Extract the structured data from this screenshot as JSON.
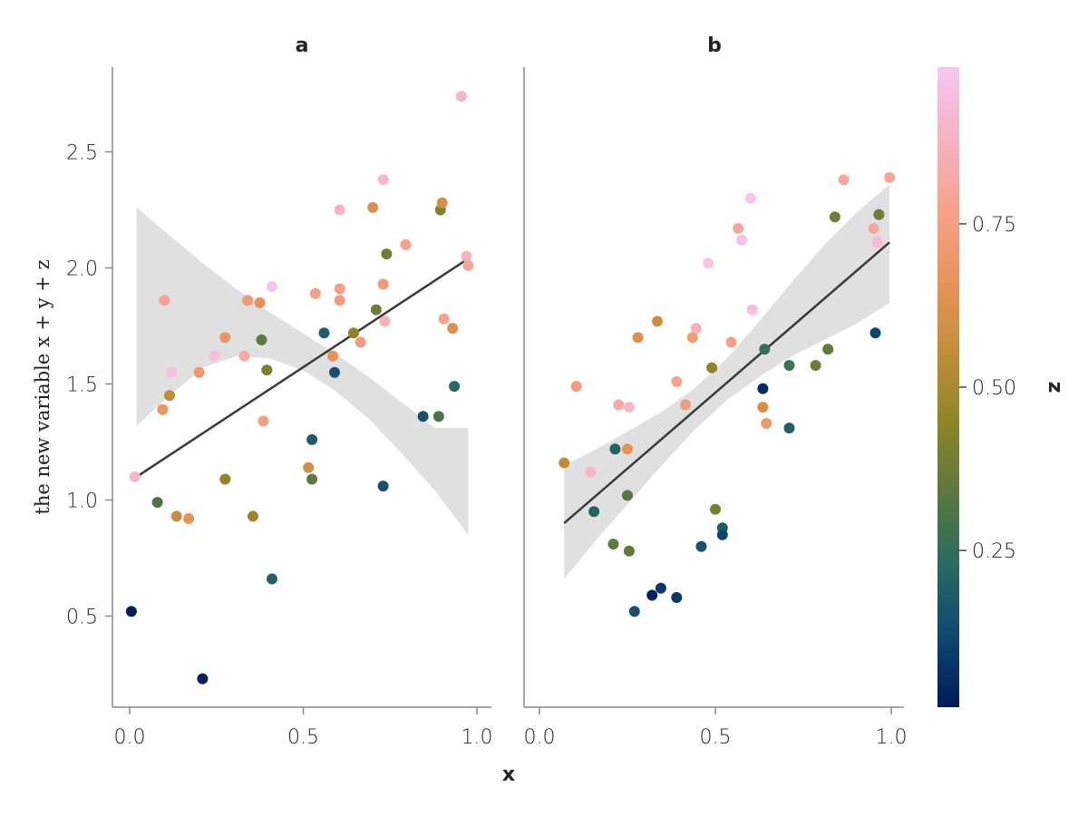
{
  "chart_data": {
    "type": "scatter",
    "xlabel": "x",
    "ylabel": "the new variable x + y + z",
    "xlim": [
      -0.05,
      1.05
    ],
    "ylim": [
      0.1,
      2.85
    ],
    "x_ticks": [
      "0.0",
      "0.5",
      "1.0"
    ],
    "y_ticks": [
      "0.5",
      "1.0",
      "1.5",
      "2.0",
      "2.5"
    ],
    "colorbar": {
      "label": "z",
      "range": [
        0.01,
        0.99
      ],
      "ticks": [
        "0.25",
        "0.50",
        "0.75"
      ],
      "palette": [
        "#001a5a",
        "#10476f",
        "#2b6a63",
        "#5a7740",
        "#8e8527",
        "#c28d3a",
        "#ea935c",
        "#f6a18d",
        "#f6b3c3",
        "#f6c6f2"
      ]
    },
    "panels": [
      {
        "title": "a",
        "fit": {
          "x0": 0.02,
          "x1": 0.975,
          "y0": 1.1,
          "y1": 2.04,
          "lo": [
            1.32,
            1.45,
            1.57,
            1.62,
            1.61,
            1.56,
            1.47,
            1.35,
            1.2,
            1.04,
            0.85
          ],
          "hi": [
            2.26,
            2.14,
            2.02,
            1.91,
            1.81,
            1.72,
            1.63,
            1.53,
            1.42,
            1.31,
            1.31
          ]
        },
        "points": [
          {
            "x": 0.005,
            "y": 0.52,
            "z": 0.02
          },
          {
            "x": 0.015,
            "y": 1.1,
            "z": 0.9
          },
          {
            "x": 0.08,
            "y": 0.99,
            "z": 0.3
          },
          {
            "x": 0.095,
            "y": 1.39,
            "z": 0.68
          },
          {
            "x": 0.1,
            "y": 1.86,
            "z": 0.78
          },
          {
            "x": 0.115,
            "y": 1.45,
            "z": 0.55
          },
          {
            "x": 0.12,
            "y": 1.55,
            "z": 0.95
          },
          {
            "x": 0.135,
            "y": 0.93,
            "z": 0.58
          },
          {
            "x": 0.17,
            "y": 0.92,
            "z": 0.65
          },
          {
            "x": 0.2,
            "y": 1.55,
            "z": 0.7
          },
          {
            "x": 0.21,
            "y": 0.23,
            "z": 0.03
          },
          {
            "x": 0.245,
            "y": 1.62,
            "z": 0.95
          },
          {
            "x": 0.275,
            "y": 1.7,
            "z": 0.68
          },
          {
            "x": 0.275,
            "y": 1.09,
            "z": 0.45
          },
          {
            "x": 0.33,
            "y": 1.62,
            "z": 0.82
          },
          {
            "x": 0.34,
            "y": 1.86,
            "z": 0.72
          },
          {
            "x": 0.355,
            "y": 0.93,
            "z": 0.48
          },
          {
            "x": 0.375,
            "y": 1.85,
            "z": 0.66
          },
          {
            "x": 0.38,
            "y": 1.69,
            "z": 0.35
          },
          {
            "x": 0.385,
            "y": 1.34,
            "z": 0.75
          },
          {
            "x": 0.395,
            "y": 1.56,
            "z": 0.4
          },
          {
            "x": 0.41,
            "y": 1.92,
            "z": 0.97
          },
          {
            "x": 0.41,
            "y": 0.66,
            "z": 0.2
          },
          {
            "x": 0.515,
            "y": 1.14,
            "z": 0.6
          },
          {
            "x": 0.525,
            "y": 1.26,
            "z": 0.18
          },
          {
            "x": 0.525,
            "y": 1.09,
            "z": 0.35
          },
          {
            "x": 0.535,
            "y": 1.89,
            "z": 0.76
          },
          {
            "x": 0.56,
            "y": 1.72,
            "z": 0.18
          },
          {
            "x": 0.585,
            "y": 1.62,
            "z": 0.66
          },
          {
            "x": 0.59,
            "y": 1.55,
            "z": 0.15
          },
          {
            "x": 0.605,
            "y": 2.25,
            "z": 0.88
          },
          {
            "x": 0.605,
            "y": 1.91,
            "z": 0.76
          },
          {
            "x": 0.605,
            "y": 1.86,
            "z": 0.74
          },
          {
            "x": 0.645,
            "y": 1.72,
            "z": 0.45
          },
          {
            "x": 0.665,
            "y": 1.68,
            "z": 0.74
          },
          {
            "x": 0.7,
            "y": 2.26,
            "z": 0.62
          },
          {
            "x": 0.71,
            "y": 1.82,
            "z": 0.38
          },
          {
            "x": 0.73,
            "y": 2.38,
            "z": 0.9
          },
          {
            "x": 0.73,
            "y": 1.93,
            "z": 0.72
          },
          {
            "x": 0.73,
            "y": 1.06,
            "z": 0.15
          },
          {
            "x": 0.735,
            "y": 1.77,
            "z": 0.86
          },
          {
            "x": 0.74,
            "y": 2.06,
            "z": 0.38
          },
          {
            "x": 0.795,
            "y": 2.1,
            "z": 0.78
          },
          {
            "x": 0.845,
            "y": 1.36,
            "z": 0.15
          },
          {
            "x": 0.89,
            "y": 1.36,
            "z": 0.3
          },
          {
            "x": 0.895,
            "y": 2.25,
            "z": 0.42
          },
          {
            "x": 0.9,
            "y": 2.28,
            "z": 0.6
          },
          {
            "x": 0.905,
            "y": 1.78,
            "z": 0.78
          },
          {
            "x": 0.93,
            "y": 1.74,
            "z": 0.62
          },
          {
            "x": 0.935,
            "y": 1.49,
            "z": 0.22
          },
          {
            "x": 0.955,
            "y": 2.74,
            "z": 0.9
          },
          {
            "x": 0.97,
            "y": 2.05,
            "z": 0.88
          },
          {
            "x": 0.975,
            "y": 2.01,
            "z": 0.8
          }
        ]
      },
      {
        "title": "b",
        "fit": {
          "x0": 0.07,
          "x1": 0.995,
          "y0": 0.9,
          "y1": 2.11,
          "lo": [
            0.66,
            0.83,
            0.99,
            1.15,
            1.3,
            1.43,
            1.53,
            1.62,
            1.69,
            1.76,
            1.85
          ],
          "hi": [
            1.15,
            1.22,
            1.3,
            1.38,
            1.48,
            1.61,
            1.77,
            1.94,
            2.1,
            2.24,
            2.36
          ]
        },
        "points": [
          {
            "x": 0.07,
            "y": 1.16,
            "z": 0.55
          },
          {
            "x": 0.105,
            "y": 1.49,
            "z": 0.74
          },
          {
            "x": 0.145,
            "y": 1.12,
            "z": 0.9
          },
          {
            "x": 0.155,
            "y": 0.95,
            "z": 0.2
          },
          {
            "x": 0.21,
            "y": 0.81,
            "z": 0.35
          },
          {
            "x": 0.215,
            "y": 1.22,
            "z": 0.2
          },
          {
            "x": 0.225,
            "y": 1.41,
            "z": 0.82
          },
          {
            "x": 0.25,
            "y": 1.22,
            "z": 0.66
          },
          {
            "x": 0.25,
            "y": 1.02,
            "z": 0.33
          },
          {
            "x": 0.255,
            "y": 0.78,
            "z": 0.35
          },
          {
            "x": 0.255,
            "y": 1.4,
            "z": 0.9
          },
          {
            "x": 0.27,
            "y": 0.52,
            "z": 0.15
          },
          {
            "x": 0.28,
            "y": 1.7,
            "z": 0.62
          },
          {
            "x": 0.32,
            "y": 0.59,
            "z": 0.03
          },
          {
            "x": 0.335,
            "y": 1.77,
            "z": 0.58
          },
          {
            "x": 0.345,
            "y": 0.62,
            "z": 0.08
          },
          {
            "x": 0.39,
            "y": 0.58,
            "z": 0.08
          },
          {
            "x": 0.39,
            "y": 1.51,
            "z": 0.78
          },
          {
            "x": 0.415,
            "y": 1.41,
            "z": 0.74
          },
          {
            "x": 0.435,
            "y": 1.7,
            "z": 0.72
          },
          {
            "x": 0.445,
            "y": 1.74,
            "z": 0.86
          },
          {
            "x": 0.46,
            "y": 0.8,
            "z": 0.15
          },
          {
            "x": 0.48,
            "y": 2.02,
            "z": 0.97
          },
          {
            "x": 0.49,
            "y": 1.57,
            "z": 0.45
          },
          {
            "x": 0.5,
            "y": 0.96,
            "z": 0.4
          },
          {
            "x": 0.52,
            "y": 0.88,
            "z": 0.18
          },
          {
            "x": 0.52,
            "y": 0.85,
            "z": 0.12
          },
          {
            "x": 0.545,
            "y": 1.68,
            "z": 0.76
          },
          {
            "x": 0.565,
            "y": 2.17,
            "z": 0.8
          },
          {
            "x": 0.575,
            "y": 2.12,
            "z": 0.96
          },
          {
            "x": 0.6,
            "y": 2.3,
            "z": 0.97
          },
          {
            "x": 0.605,
            "y": 1.82,
            "z": 0.95
          },
          {
            "x": 0.635,
            "y": 1.48,
            "z": 0.05
          },
          {
            "x": 0.635,
            "y": 1.4,
            "z": 0.6
          },
          {
            "x": 0.64,
            "y": 1.65,
            "z": 0.25
          },
          {
            "x": 0.645,
            "y": 1.33,
            "z": 0.7
          },
          {
            "x": 0.71,
            "y": 1.58,
            "z": 0.28
          },
          {
            "x": 0.71,
            "y": 1.31,
            "z": 0.2
          },
          {
            "x": 0.785,
            "y": 1.58,
            "z": 0.38
          },
          {
            "x": 0.82,
            "y": 1.65,
            "z": 0.35
          },
          {
            "x": 0.84,
            "y": 2.22,
            "z": 0.38
          },
          {
            "x": 0.865,
            "y": 2.38,
            "z": 0.8
          },
          {
            "x": 0.95,
            "y": 2.17,
            "z": 0.8
          },
          {
            "x": 0.955,
            "y": 1.72,
            "z": 0.12
          },
          {
            "x": 0.96,
            "y": 2.11,
            "z": 0.92
          },
          {
            "x": 0.965,
            "y": 2.23,
            "z": 0.38
          },
          {
            "x": 0.995,
            "y": 2.39,
            "z": 0.8
          }
        ]
      }
    ]
  }
}
